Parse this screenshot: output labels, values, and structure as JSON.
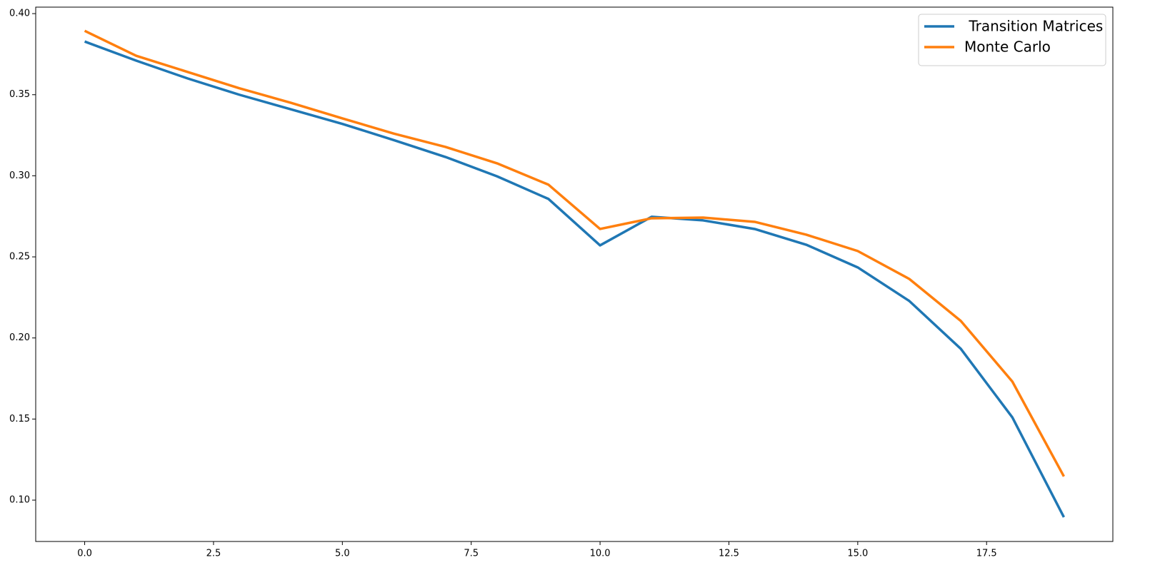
{
  "chart_data": {
    "type": "line",
    "x": [
      0,
      1,
      2,
      3,
      4,
      5,
      6,
      7,
      8,
      9,
      10,
      11,
      12,
      13,
      14,
      15,
      16,
      17,
      18,
      19
    ],
    "series": [
      {
        "name": " Transition Matrices",
        "color": "#1f77b4",
        "values": [
          0.3828,
          0.371,
          0.36,
          0.35,
          0.341,
          0.332,
          0.322,
          0.3116,
          0.2997,
          0.2857,
          0.2571,
          0.2747,
          0.2725,
          0.2672,
          0.2575,
          0.2435,
          0.2228,
          0.1933,
          0.151,
          0.0895
        ]
      },
      {
        "name": "Monte Carlo",
        "color": "#ff7f0e",
        "values": [
          0.3894,
          0.374,
          0.364,
          0.354,
          0.345,
          0.3354,
          0.326,
          0.3178,
          0.3077,
          0.2945,
          0.2672,
          0.2738,
          0.2742,
          0.2716,
          0.2637,
          0.2536,
          0.2364,
          0.2105,
          0.1731,
          0.1146
        ]
      }
    ],
    "xlim": [
      -0.95,
      19.95
    ],
    "xticks": [
      {
        "value": 0,
        "label": "0.0"
      },
      2.5,
      {
        "value": 5,
        "label": "5.0"
      },
      7.5,
      {
        "value": 10,
        "label": "10.0"
      },
      12.5,
      {
        "value": 15,
        "label": "15.0"
      },
      17.5
    ],
    "ylim": [
      0.0745,
      0.404
    ],
    "yticks": [
      {
        "value": 0.1,
        "label": "0.10"
      },
      {
        "value": 0.15,
        "label": "0.15"
      },
      {
        "value": 0.2,
        "label": "0.20"
      },
      {
        "value": 0.25,
        "label": "0.25"
      },
      {
        "value": 0.3,
        "label": "0.30"
      },
      {
        "value": 0.35,
        "label": "0.35"
      },
      {
        "value": 0.4,
        "label": "0.40"
      }
    ],
    "grid": false,
    "legend": "upper right"
  }
}
